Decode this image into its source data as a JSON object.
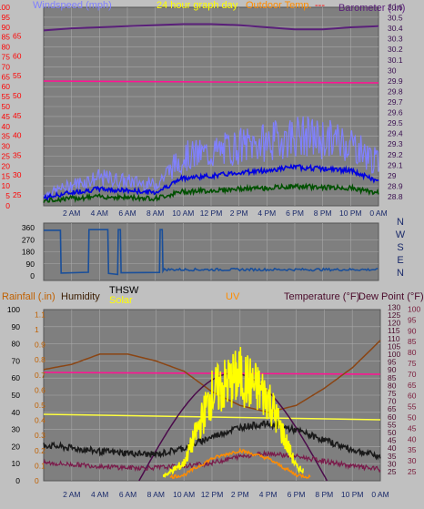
{
  "colors": {
    "background": "#c0c0c0",
    "plot_bg": "#7f7f7f",
    "grid": "#a8a8a8",
    "wind": "#8080ff",
    "wind_avg": "#0000e0",
    "wind_low": "#005000",
    "temp_axis": "#ff0000",
    "barometer": "#5a1f7a",
    "humidity_line": "#ff1493",
    "direction": "#1a4f9a",
    "rain": "#c06000",
    "humidity2": "#8b4513",
    "solar": "#ffff00",
    "uv": "#ff8c00",
    "temperature": "#4b0b4b",
    "dewpoint": "#ff1493",
    "thsw": "#1a1a1a"
  },
  "top_chart": {
    "labels": {
      "windspeed": "Windspeed (mph)",
      "graph_day": "24 hour graph day",
      "outdoor_temp": "Outdoor Temp.",
      "dashes": "---",
      "barometer": "Barometer (.in)"
    },
    "left_ticks": [
      "0",
      "5",
      "10",
      "15",
      "20",
      "25",
      "30",
      "35",
      "40",
      "45",
      "50",
      "55",
      "60",
      "65",
      "70",
      "75",
      "80",
      "85",
      "90",
      "95",
      "100"
    ],
    "wind_ticks": [
      "25",
      "30",
      "35",
      "40",
      "45",
      "50",
      "55",
      "60",
      "65"
    ],
    "right_ticks": [
      "28.8",
      "28.9",
      "29",
      "29.1",
      "29.2",
      "29.3",
      "29.4",
      "29.5",
      "29.6",
      "29.7",
      "29.8",
      "29.9",
      "30",
      "30.1",
      "30.2",
      "30.3",
      "30.4",
      "30.5",
      "30.6"
    ],
    "x_ticks": [
      "2 AM",
      "4 AM",
      "6 AM",
      "8 AM",
      "10 AM",
      "12 PM",
      "2 PM",
      "4 PM",
      "6 PM",
      "8 PM",
      "10 PM",
      "0 AM"
    ]
  },
  "mid_chart": {
    "y_ticks": [
      "360",
      "270",
      "180",
      "90",
      "0"
    ],
    "compass": [
      "N",
      "W",
      "S",
      "E",
      "N"
    ]
  },
  "bottom_chart": {
    "labels": {
      "rainfall": "Rainfall (.in)",
      "humidity": "Humidity",
      "thsw": "THSW",
      "solar": "Solar",
      "uv": "UV",
      "temperature": "Temperature (°F)",
      "dewpoint": "Dew Point (°F)"
    },
    "left_ticks": [
      "0",
      "10",
      "20",
      "30",
      "40",
      "50",
      "60",
      "70",
      "80",
      "90",
      "100"
    ],
    "rain_ticks": [
      "0",
      "0.1",
      "0.2",
      "0.3",
      "0.4",
      "0.5",
      "0.6",
      "0.7",
      "0.8",
      "0.9",
      "1",
      "1.1"
    ],
    "right_ticks": [
      "25",
      "30",
      "35",
      "40",
      "45",
      "50",
      "55",
      "60",
      "65",
      "70",
      "75",
      "80",
      "85",
      "90",
      "95",
      "100",
      "105",
      "110",
      "115",
      "120",
      "125",
      "130"
    ],
    "far_right_ticks": [
      "25",
      "30",
      "35",
      "40",
      "45",
      "50",
      "55",
      "60",
      "65",
      "70",
      "75",
      "80",
      "85",
      "90",
      "95",
      "100"
    ],
    "x_ticks": [
      "2 AM",
      "4 AM",
      "6 AM",
      "8 AM",
      "10 AM",
      "12 PM",
      "2 PM",
      "4 PM",
      "6 PM",
      "8 PM",
      "10 PM",
      "0 AM"
    ]
  },
  "chart_data": [
    {
      "type": "line",
      "x": [
        0,
        2,
        4,
        6,
        8,
        10,
        12,
        14,
        16,
        18,
        20,
        22,
        24
      ],
      "xlabel": "",
      "series": [
        {
          "name": "Windspeed (mph)",
          "values": [
            3,
            6,
            8,
            7,
            6,
            14,
            15,
            17,
            18,
            20,
            19,
            18,
            12
          ]
        },
        {
          "name": "Barometer (.in)",
          "values": [
            30.38,
            30.4,
            30.41,
            30.42,
            30.43,
            30.44,
            30.44,
            30.43,
            30.41,
            30.39,
            30.39,
            30.41,
            30.42
          ]
        }
      ]
    },
    {
      "type": "line",
      "x": [
        0,
        1,
        3,
        4,
        5,
        6,
        8,
        10,
        12,
        14,
        16,
        18,
        20,
        22,
        24
      ],
      "series": [
        {
          "name": "",
          "values": [
            340,
            340,
            20,
            340,
            40,
            340,
            40,
            45,
            45,
            45,
            40,
            45,
            45,
            45,
            50
          ]
        }
      ],
      "ylim": [
        0,
        360
      ]
    },
    {
      "type": "line",
      "x": [
        0,
        2,
        4,
        6,
        8,
        10,
        12,
        14,
        16,
        18,
        20,
        22,
        24
      ],
      "series": [
        {
          "name": "Humidity",
          "values": [
            65,
            68,
            74,
            74,
            70,
            64,
            52,
            44,
            40,
            44,
            54,
            66,
            82
          ]
        },
        {
          "name": "Solar",
          "values": [
            0,
            0,
            0,
            0,
            0,
            10,
            50,
            60,
            48,
            8,
            0,
            0,
            0
          ]
        },
        {
          "name": "UV",
          "values": [
            0,
            0,
            0,
            0,
            0,
            2,
            10,
            14,
            10,
            2,
            0,
            0,
            0
          ]
        },
        {
          "name": "Temperature (°F)",
          "values": [
            47,
            45,
            43,
            42,
            41,
            45,
            52,
            58,
            60,
            56,
            50,
            44,
            40
          ]
        },
        {
          "name": "Dew Point (°F)",
          "values": [
            36,
            35,
            34,
            33,
            33,
            34,
            36,
            40,
            42,
            40,
            37,
            34,
            32
          ]
        },
        {
          "name": "THSW",
          "values": [
            0,
            0,
            0,
            0,
            2,
            35,
            55,
            62,
            50,
            20,
            0,
            0,
            0
          ]
        }
      ]
    }
  ]
}
